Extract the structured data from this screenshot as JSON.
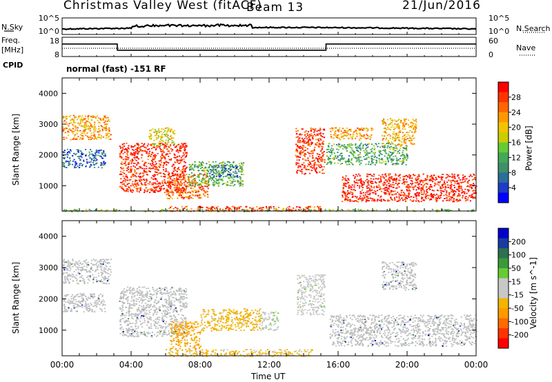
{
  "header": {
    "station": "Christmas Valley West (fitACF)",
    "beam": "Beam 13",
    "date": "21/Jun/2016"
  },
  "left_labels": {
    "nsky": "N.Sky",
    "freq": "Freq.",
    "freq_unit": "[MHz]",
    "cpid": "CPID"
  },
  "right_labels": {
    "nsearch": "N.Search",
    "nave": "Nave"
  },
  "mode_text": "normal (fast) -151 RF",
  "colors": {
    "power": [
      "#0000ff",
      "#1e3cc8",
      "#2a6e9a",
      "#3f8f6a",
      "#44a85a",
      "#66cc33",
      "#cccc00",
      "#f2c400",
      "#ff9900",
      "#ff6600",
      "#ff3300",
      "#ff0000"
    ],
    "velocity": [
      "#0000cc",
      "#1a3aa0",
      "#2e7050",
      "#3a9a3a",
      "#66cc33",
      "#c8c8c8",
      "#c8c8c8",
      "#f2b400",
      "#ff9900",
      "#ff6a00",
      "#ff3300",
      "#ff0000"
    ],
    "ground_scatter": "#bfbfbf"
  },
  "chart_data": [
    {
      "type": "line",
      "title": "N.Sky / N.Search",
      "y_ticks_left": [
        "10^5",
        "10^0"
      ],
      "y_ticks_right": [
        "10^5",
        "10^0"
      ],
      "note": "noise levels, trace near 10^1"
    },
    {
      "type": "line",
      "title": "Freq. [MHz] / Nave",
      "y_ticks_left": [
        "18",
        "8"
      ],
      "y_ticks_right": [
        "60",
        "0"
      ],
      "freq_segments": [
        {
          "start_hour": 0,
          "end_hour": 3.2,
          "freq": 14.5
        },
        {
          "start_hour": 3.2,
          "end_hour": 15.3,
          "freq": 11.3
        },
        {
          "start_hour": 15.3,
          "end_hour": 24,
          "freq": 14.5
        }
      ]
    },
    {
      "type": "heatmap",
      "ylabel": "Slant Range [km]",
      "colorbar_label": "Power [dB]",
      "y_ticks": [
        "4000",
        "3000",
        "2000",
        "1000"
      ],
      "yrange_km": [
        180,
        4500
      ],
      "colorbar_ticks": [
        "28",
        "24",
        "20",
        "16",
        "12",
        "8",
        "4"
      ],
      "clim": [
        0,
        30
      ],
      "regions": [
        {
          "t0": 0.0,
          "t1": 2.8,
          "r0": 2500,
          "r1": 3300,
          "level": 21
        },
        {
          "t0": 0.0,
          "t1": 2.5,
          "r0": 1600,
          "r1": 2200,
          "level": 6
        },
        {
          "t0": 3.3,
          "t1": 7.2,
          "r0": 800,
          "r1": 2400,
          "level": 27
        },
        {
          "t0": 5.0,
          "t1": 6.5,
          "r0": 2300,
          "r1": 2900,
          "level": 18
        },
        {
          "t0": 6.0,
          "t1": 8.5,
          "r0": 600,
          "r1": 1400,
          "level": 24
        },
        {
          "t0": 7.3,
          "t1": 10.5,
          "r0": 1000,
          "r1": 1800,
          "level": 12
        },
        {
          "t0": 8.5,
          "t1": 10.2,
          "r0": 1300,
          "r1": 1700,
          "level": 7
        },
        {
          "t0": 13.5,
          "t1": 15.2,
          "r0": 1400,
          "r1": 2900,
          "level": 27
        },
        {
          "t0": 15.3,
          "t1": 20.0,
          "r0": 1700,
          "r1": 2400,
          "level": 11
        },
        {
          "t0": 16.2,
          "t1": 24.0,
          "r0": 500,
          "r1": 1400,
          "level": 28
        },
        {
          "t0": 15.5,
          "t1": 18.0,
          "r0": 2500,
          "r1": 2900,
          "level": 21
        },
        {
          "t0": 18.5,
          "t1": 20.5,
          "r0": 2300,
          "r1": 3200,
          "level": 20
        },
        {
          "t0": 6.0,
          "t1": 15.0,
          "r0": 180,
          "r1": 350,
          "level": 26
        },
        {
          "t0": 0.0,
          "t1": 24.0,
          "r0": 180,
          "r1": 250,
          "level": 14
        }
      ]
    },
    {
      "type": "heatmap",
      "xlabel": "Time UT",
      "ylabel": "Slant Range [km]",
      "colorbar_label": "Velocity [m s^-1]",
      "x_ticks": [
        "00:00",
        "04:00",
        "08:00",
        "12:00",
        "16:00",
        "20:00",
        "00:00"
      ],
      "xrange_hours": [
        0,
        24
      ],
      "y_ticks": [
        "4000",
        "3000",
        "2000",
        "1000"
      ],
      "yrange_km": [
        180,
        4500
      ],
      "colorbar_ticks": [
        "200",
        "100",
        "50",
        "15",
        "-15",
        "-50",
        "-100",
        "-200"
      ],
      "clim": [
        -250,
        250
      ],
      "regions": [
        {
          "t0": 0.0,
          "t1": 2.8,
          "r0": 2500,
          "r1": 3300,
          "kind": "gs"
        },
        {
          "t0": 0.0,
          "t1": 2.5,
          "r0": 1600,
          "r1": 2200,
          "kind": "gs"
        },
        {
          "t0": 3.3,
          "t1": 7.2,
          "r0": 800,
          "r1": 2400,
          "kind": "gs"
        },
        {
          "t0": 6.2,
          "t1": 8.0,
          "r0": 400,
          "r1": 1300,
          "velocity": -90
        },
        {
          "t0": 8.0,
          "t1": 11.5,
          "r0": 1000,
          "r1": 1700,
          "velocity": -60
        },
        {
          "t0": 11.5,
          "t1": 12.5,
          "r0": 1000,
          "r1": 1600,
          "velocity": 25
        },
        {
          "t0": 13.6,
          "t1": 15.2,
          "r0": 1500,
          "r1": 2800,
          "velocity": 20
        },
        {
          "t0": 15.5,
          "t1": 24.0,
          "r0": 500,
          "r1": 1500,
          "kind": "gs"
        },
        {
          "t0": 18.5,
          "t1": 20.5,
          "r0": 2300,
          "r1": 3200,
          "kind": "gs"
        },
        {
          "t0": 6.0,
          "t1": 14.5,
          "r0": 180,
          "r1": 400,
          "velocity": -55
        }
      ]
    }
  ]
}
